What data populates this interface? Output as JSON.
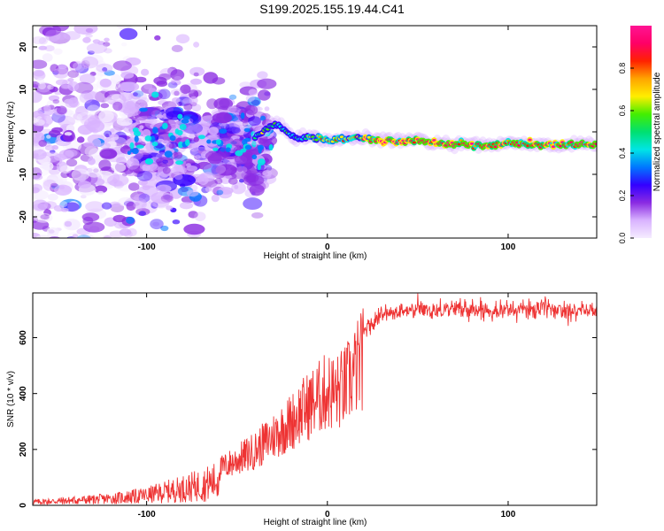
{
  "title": "S199.2025.155.19.44.C41",
  "chart_data": [
    {
      "type": "heatmap",
      "xlabel": "Height of straight line (km)",
      "ylabel": "Frequency (Hz)",
      "xlim": [
        -163,
        149
      ],
      "ylim": [
        -25,
        25
      ],
      "x_ticks": [
        -100,
        0,
        100
      ],
      "y_ticks": [
        -20,
        -10,
        0,
        10,
        20
      ],
      "colorbar": {
        "label": "Normalized spectral amplitude",
        "range": [
          0,
          1
        ],
        "ticks": [
          "0.0",
          "0.2",
          "0.4",
          "0.6",
          "0.8"
        ],
        "colors": [
          "#f5ecff",
          "#d9b3ff",
          "#8a2be2",
          "#3300ff",
          "#0077ff",
          "#00e5e5",
          "#00e070",
          "#44ee00",
          "#ffee00",
          "#ffa500",
          "#ff2200",
          "#ff0066",
          "#ff1493"
        ]
      },
      "ridge": {
        "description_x": [
          -40,
          -30,
          -25,
          -20,
          -15,
          -10,
          0,
          10,
          20,
          30,
          40,
          50,
          60,
          70,
          80,
          90,
          100,
          110,
          120,
          130,
          149
        ],
        "frequency_hz": [
          -1,
          2,
          1,
          -1,
          -2,
          -1,
          -2,
          -1.5,
          -1.5,
          -2,
          -2,
          -2,
          -2.5,
          -3,
          -3,
          -3.5,
          -2.5,
          -3,
          -3,
          -3,
          -3
        ]
      }
    },
    {
      "type": "line",
      "xlabel": "Height of straight line (km)",
      "ylabel": "SNR (10 * v/v)",
      "xlim": [
        -163,
        149
      ],
      "ylim": [
        0,
        760
      ],
      "x_ticks": [
        -100,
        0,
        100
      ],
      "y_ticks": [
        0,
        200,
        400,
        600
      ],
      "series": [
        {
          "color": "#ee3333",
          "x": [
            -163,
            -150,
            -140,
            -130,
            -120,
            -110,
            -100,
            -90,
            -80,
            -70,
            -60,
            -50,
            -40,
            -35,
            -30,
            -25,
            -20,
            -15,
            -10,
            -5,
            0,
            5,
            10,
            15,
            20,
            25,
            30,
            40,
            50,
            60,
            70,
            80,
            90,
            100,
            110,
            120,
            130,
            140,
            149
          ],
          "values": [
            20,
            25,
            30,
            35,
            40,
            50,
            60,
            80,
            100,
            120,
            150,
            190,
            230,
            260,
            290,
            320,
            350,
            390,
            420,
            450,
            480,
            470,
            500,
            560,
            620,
            660,
            680,
            690,
            700,
            700,
            705,
            700,
            700,
            700,
            700,
            705,
            700,
            700,
            695
          ]
        }
      ]
    }
  ]
}
